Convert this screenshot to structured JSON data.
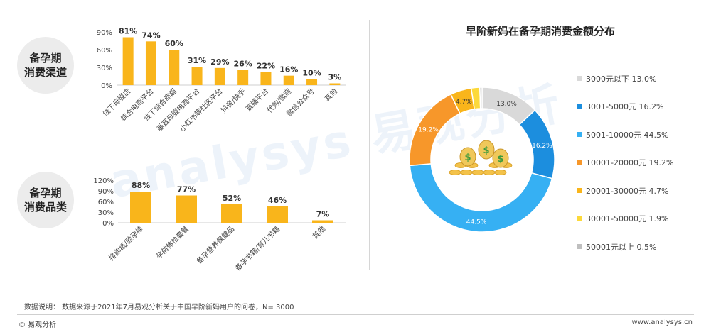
{
  "section_labels": {
    "channel": [
      "备孕期",
      "消费渠道"
    ],
    "product": [
      "备孕期",
      "消费品类"
    ]
  },
  "donut_title": "早阶新妈在备孕期消费金额分布",
  "chart_data": [
    {
      "type": "bar",
      "name": "channel",
      "categories": [
        "线下母婴店",
        "综合电商平台",
        "线下综合商超",
        "垂直母婴电商平台",
        "小红书等社区平台",
        "抖音/快手",
        "直播平台",
        "代购/微商",
        "微信公众号",
        "其他"
      ],
      "values": [
        81,
        74,
        60,
        31,
        29,
        26,
        22,
        16,
        10,
        3
      ],
      "value_labels": [
        "81%",
        "74%",
        "60%",
        "31%",
        "29%",
        "26%",
        "22%",
        "16%",
        "10%",
        "3%"
      ],
      "yticks": [
        "90%",
        "60%",
        "30%",
        "0%"
      ],
      "ylim": [
        0,
        90
      ],
      "color": "#f9b51b"
    },
    {
      "type": "bar",
      "name": "product",
      "categories": [
        "排卵纸/验孕棒",
        "孕前体检套餐",
        "备孕营养保健品",
        "备孕书籍/育儿书籍",
        "其他"
      ],
      "values": [
        88,
        77,
        52,
        46,
        7
      ],
      "value_labels": [
        "88%",
        "77%",
        "52%",
        "46%",
        "7%"
      ],
      "yticks": [
        "120%",
        "90%",
        "60%",
        "30%",
        "0%"
      ],
      "ylim": [
        0,
        120
      ],
      "color": "#f9b51b"
    },
    {
      "type": "pie",
      "name": "spending",
      "categories": [
        "3000元以下",
        "3001-5000元",
        "5001-10000元",
        "10001-20000元",
        "20001-30000元",
        "30001-50000元",
        "50001元以上"
      ],
      "values": [
        13.0,
        16.2,
        44.5,
        19.2,
        4.7,
        1.9,
        0.5
      ],
      "legend": [
        "3000元以下 13.0%",
        "3001-5000元 16.2%",
        "5001-10000元 44.5%",
        "10001-20000元 19.2%",
        "20001-30000元 4.7%",
        "30001-50000元 1.9%",
        "50001元以上 0.5%"
      ],
      "slice_labels": [
        "13.0%",
        "16.2%",
        "44.5%",
        "19.2%",
        "4.7%",
        "",
        ""
      ],
      "colors": [
        "#d9d9d9",
        "#1c8ede",
        "#36b0f3",
        "#f7972a",
        "#f9b51b",
        "#fcd93a",
        "#bfbfbf"
      ],
      "legend_position": "right"
    }
  ],
  "watermark": "analysys 易观分析",
  "footnote": "数据说明：  数据来源于2021年7月易观分析关于中国早阶新妈用户的问卷，N= 3000",
  "footer": {
    "left": "© 易观分析",
    "right": "www.analysys.cn"
  }
}
